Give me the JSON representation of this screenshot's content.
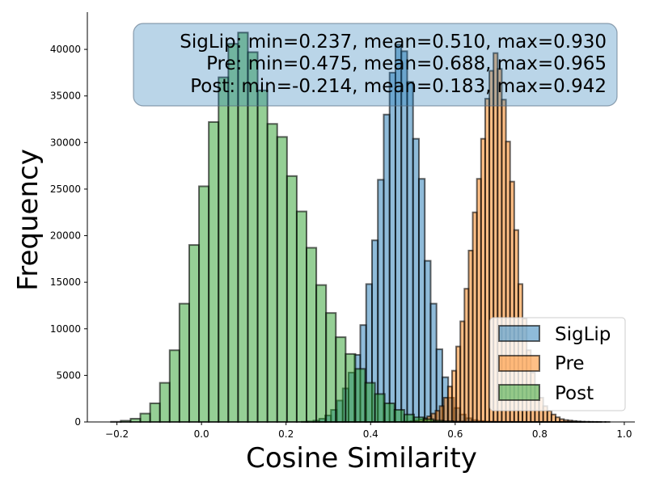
{
  "chart_data": {
    "type": "bar",
    "xlabel": "Cosine Similarity",
    "ylabel": "Frequency",
    "xlim": [
      -0.27,
      1.025
    ],
    "ylim": [
      0,
      44000
    ],
    "x_ticks": [
      -0.2,
      0.0,
      0.2,
      0.4,
      0.6,
      0.8,
      1.0
    ],
    "x_tick_labels": [
      "−0.2",
      "0.0",
      "0.2",
      "0.4",
      "0.6",
      "0.8",
      "1.0"
    ],
    "y_ticks": [
      0,
      5000,
      10000,
      15000,
      20000,
      25000,
      30000,
      35000,
      40000
    ],
    "y_tick_labels": [
      "0",
      "5000",
      "10000",
      "15000",
      "20000",
      "25000",
      "30000",
      "35000",
      "40000"
    ],
    "stats": [
      "SigLip: min=0.237, mean=0.510, max=0.930",
      "Pre: min=0.475, mean=0.688, max=0.965",
      "Post: min=-0.214, mean=0.183, max=0.942"
    ],
    "legend_position": "lower-right",
    "series": [
      {
        "name": "SigLip",
        "color": "#1f77b4",
        "bin_start": 0.237,
        "bin_width": 0.01386,
        "values": [
          20,
          60,
          150,
          350,
          700,
          1300,
          2300,
          3600,
          5300,
          7200,
          10400,
          14800,
          19500,
          26000,
          33000,
          37500,
          40500,
          39800,
          36500,
          30400,
          26100,
          17300,
          12700,
          7800,
          4800,
          2600,
          1500,
          800,
          400,
          200,
          100,
          50,
          30,
          20,
          10,
          8,
          6,
          4,
          3,
          2,
          2,
          1,
          1,
          1,
          1,
          1,
          1,
          1,
          0,
          0
        ]
      },
      {
        "name": "Pre",
        "color": "#ff7f0e",
        "bin_start": 0.475,
        "bin_width": 0.0098,
        "values": [
          20,
          40,
          80,
          150,
          250,
          400,
          600,
          900,
          1200,
          1700,
          2600,
          3800,
          5500,
          8100,
          10800,
          14300,
          18400,
          22500,
          26100,
          30400,
          34700,
          37700,
          39600,
          37900,
          34600,
          30100,
          25800,
          20600,
          14800,
          11100,
          7700,
          5300,
          3900,
          2600,
          1700,
          1200,
          800,
          500,
          300,
          200,
          150,
          100,
          60,
          30,
          20,
          10,
          5,
          2,
          1,
          1
        ]
      },
      {
        "name": "Post",
        "color": "#2ca02c",
        "bin_start": -0.214,
        "bin_width": 0.02312,
        "values": [
          20,
          130,
          350,
          900,
          2000,
          4200,
          7700,
          12700,
          19000,
          25300,
          32200,
          37000,
          40600,
          41800,
          39700,
          35600,
          32000,
          30600,
          26400,
          22600,
          18700,
          14700,
          11700,
          9100,
          7300,
          5700,
          4200,
          3000,
          2000,
          1300,
          800,
          500,
          300,
          150,
          80,
          40,
          20,
          10,
          5,
          2,
          1,
          1,
          1,
          1,
          1,
          1,
          1,
          1,
          1,
          1
        ]
      }
    ]
  }
}
